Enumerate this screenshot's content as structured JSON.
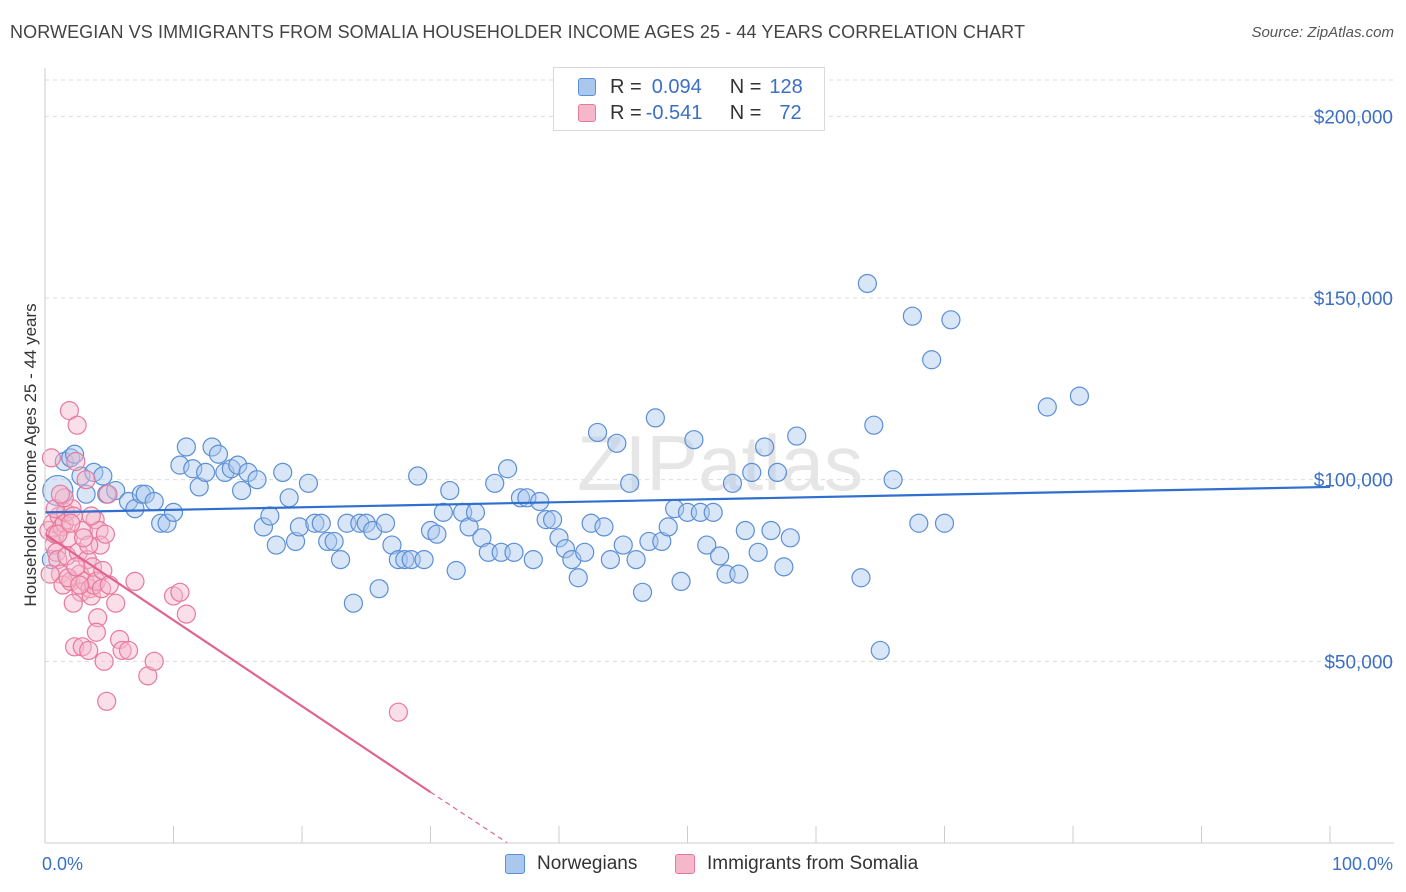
{
  "title": "NORWEGIAN VS IMMIGRANTS FROM SOMALIA HOUSEHOLDER INCOME AGES 25 - 44 YEARS CORRELATION CHART",
  "source": "Source: ZipAtlas.com",
  "watermark": "ZIPatlas",
  "colors": {
    "blue_fill": "#aac7ee",
    "blue_stroke": "#5b8fd6",
    "blue_line": "#2f6fce",
    "pink_fill": "#f5b8cb",
    "pink_stroke": "#e8799c",
    "pink_line": "#e0648f",
    "axis_text": "#3b6fc4",
    "grid": "#dcdcdc"
  },
  "legend": {
    "rows": [
      {
        "r_label": "R =",
        "r_value": "0.094",
        "n_label": "N =",
        "n_value": "128"
      },
      {
        "r_label": "R =",
        "r_value": "-0.541",
        "n_label": "N =",
        "n_value": "72"
      }
    ]
  },
  "bottom_legend": {
    "series1": "Norwegians",
    "series2": "Immigrants from Somalia"
  },
  "chart_data": {
    "type": "scatter",
    "title": "NORWEGIAN VS IMMIGRANTS FROM SOMALIA HOUSEHOLDER INCOME AGES 25 - 44 YEARS CORRELATION CHART",
    "xlabel": "",
    "ylabel": "Householder Income Ages 25 - 44 years",
    "xlim": [
      0,
      100
    ],
    "ylim": [
      0,
      210000
    ],
    "x_tick_labels": [
      "0.0%",
      "100.0%"
    ],
    "y_ticks": [
      50000,
      100000,
      150000,
      200000
    ],
    "y_tick_labels": [
      "$50,000",
      "$100,000",
      "$150,000",
      "$200,000"
    ],
    "grid": true,
    "legend_position": "top-center",
    "series": [
      {
        "name": "Norwegians",
        "color": "#5b8fd6",
        "trend": {
          "x": [
            0,
            100
          ],
          "y": [
            91000,
            98000
          ]
        },
        "points": [
          [
            1.0,
            97000
          ],
          [
            1.5,
            105000
          ],
          [
            2.0,
            106000
          ],
          [
            2.3,
            107000
          ],
          [
            2.8,
            101000
          ],
          [
            3.2,
            96000
          ],
          [
            3.8,
            102000
          ],
          [
            4.5,
            101000
          ],
          [
            4.8,
            96000
          ],
          [
            5.5,
            97000
          ],
          [
            6.5,
            94000
          ],
          [
            7.0,
            92000
          ],
          [
            7.5,
            96000
          ],
          [
            7.8,
            96000
          ],
          [
            8.5,
            94000
          ],
          [
            9.0,
            88000
          ],
          [
            9.5,
            88000
          ],
          [
            10.0,
            91000
          ],
          [
            10.5,
            104000
          ],
          [
            11.0,
            109000
          ],
          [
            11.5,
            103000
          ],
          [
            12.0,
            98000
          ],
          [
            12.5,
            102000
          ],
          [
            13.0,
            109000
          ],
          [
            13.5,
            107000
          ],
          [
            14.0,
            102000
          ],
          [
            14.5,
            103000
          ],
          [
            15.0,
            104000
          ],
          [
            15.3,
            97000
          ],
          [
            15.8,
            102000
          ],
          [
            16.5,
            100000
          ],
          [
            17.0,
            87000
          ],
          [
            17.5,
            90000
          ],
          [
            18.0,
            82000
          ],
          [
            18.5,
            102000
          ],
          [
            19.0,
            95000
          ],
          [
            19.5,
            83000
          ],
          [
            19.8,
            87000
          ],
          [
            20.5,
            99000
          ],
          [
            21.0,
            88000
          ],
          [
            21.5,
            88000
          ],
          [
            22.0,
            83000
          ],
          [
            22.5,
            83000
          ],
          [
            23.0,
            78000
          ],
          [
            23.5,
            88000
          ],
          [
            24.0,
            66000
          ],
          [
            24.5,
            88000
          ],
          [
            25.0,
            88000
          ],
          [
            25.5,
            86000
          ],
          [
            26.0,
            70000
          ],
          [
            26.5,
            88000
          ],
          [
            27.0,
            82000
          ],
          [
            27.5,
            78000
          ],
          [
            28.0,
            78000
          ],
          [
            28.5,
            78000
          ],
          [
            29.0,
            101000
          ],
          [
            29.5,
            78000
          ],
          [
            30.0,
            86000
          ],
          [
            30.5,
            85000
          ],
          [
            31.0,
            91000
          ],
          [
            31.5,
            97000
          ],
          [
            32.0,
            75000
          ],
          [
            32.5,
            91000
          ],
          [
            33.0,
            87000
          ],
          [
            33.5,
            91000
          ],
          [
            34.0,
            84000
          ],
          [
            34.5,
            80000
          ],
          [
            35.0,
            99000
          ],
          [
            35.5,
            80000
          ],
          [
            36.0,
            103000
          ],
          [
            36.5,
            80000
          ],
          [
            37.0,
            95000
          ],
          [
            37.5,
            95000
          ],
          [
            38.0,
            78000
          ],
          [
            38.5,
            94000
          ],
          [
            39.0,
            89000
          ],
          [
            39.5,
            89000
          ],
          [
            40.0,
            84000
          ],
          [
            40.5,
            81000
          ],
          [
            41.0,
            78000
          ],
          [
            41.5,
            73000
          ],
          [
            42.0,
            80000
          ],
          [
            42.5,
            88000
          ],
          [
            43.0,
            113000
          ],
          [
            43.5,
            87000
          ],
          [
            44.0,
            78000
          ],
          [
            44.5,
            110000
          ],
          [
            45.0,
            82000
          ],
          [
            45.5,
            99000
          ],
          [
            46.0,
            78000
          ],
          [
            46.5,
            69000
          ],
          [
            47.0,
            83000
          ],
          [
            47.5,
            117000
          ],
          [
            48.0,
            83000
          ],
          [
            48.5,
            87000
          ],
          [
            49.0,
            92000
          ],
          [
            49.5,
            72000
          ],
          [
            50.0,
            91000
          ],
          [
            50.5,
            111000
          ],
          [
            51.0,
            91000
          ],
          [
            51.5,
            82000
          ],
          [
            52.0,
            91000
          ],
          [
            52.5,
            79000
          ],
          [
            53.0,
            74000
          ],
          [
            53.5,
            99000
          ],
          [
            54.0,
            74000
          ],
          [
            54.5,
            86000
          ],
          [
            55.0,
            102000
          ],
          [
            55.5,
            80000
          ],
          [
            56.0,
            109000
          ],
          [
            56.5,
            86000
          ],
          [
            57.0,
            102000
          ],
          [
            57.5,
            76000
          ],
          [
            58.0,
            84000
          ],
          [
            58.5,
            112000
          ],
          [
            63.5,
            73000
          ],
          [
            64.0,
            154000
          ],
          [
            64.5,
            115000
          ],
          [
            65.0,
            53000
          ],
          [
            66.0,
            100000
          ],
          [
            67.5,
            145000
          ],
          [
            68.0,
            88000
          ],
          [
            69.0,
            133000
          ],
          [
            70.0,
            88000
          ],
          [
            70.5,
            144000
          ],
          [
            78.0,
            120000
          ],
          [
            80.5,
            123000
          ],
          [
            0.5,
            78000
          ]
        ]
      },
      {
        "name": "Immigrants from Somalia",
        "color": "#e8799c",
        "trend": {
          "x": [
            0,
            30
          ],
          "y": [
            85000,
            14000
          ]
        },
        "trend_dashed": {
          "x": [
            30,
            36
          ],
          "y": [
            14000,
            0
          ]
        },
        "points": [
          [
            0.3,
            86000
          ],
          [
            0.5,
            106000
          ],
          [
            0.6,
            88000
          ],
          [
            0.7,
            82000
          ],
          [
            0.8,
            85000
          ],
          [
            0.9,
            80000
          ],
          [
            1.0,
            78000
          ],
          [
            1.1,
            90000
          ],
          [
            1.2,
            74000
          ],
          [
            1.3,
            87000
          ],
          [
            1.4,
            71000
          ],
          [
            1.5,
            88000
          ],
          [
            1.6,
            91000
          ],
          [
            1.7,
            79000
          ],
          [
            1.8,
            84000
          ],
          [
            1.9,
            119000
          ],
          [
            2.0,
            72000
          ],
          [
            2.1,
            92000
          ],
          [
            2.2,
            90000
          ],
          [
            2.3,
            54000
          ],
          [
            2.4,
            105000
          ],
          [
            2.5,
            115000
          ],
          [
            2.6,
            80000
          ],
          [
            2.7,
            74000
          ],
          [
            2.8,
            69000
          ],
          [
            2.9,
            54000
          ],
          [
            3.0,
            86000
          ],
          [
            3.1,
            72000
          ],
          [
            3.2,
            100000
          ],
          [
            3.3,
            78000
          ],
          [
            3.4,
            53000
          ],
          [
            3.5,
            70000
          ],
          [
            3.6,
            68000
          ],
          [
            3.7,
            76000
          ],
          [
            3.8,
            71000
          ],
          [
            3.9,
            89000
          ],
          [
            4.0,
            72000
          ],
          [
            4.1,
            62000
          ],
          [
            4.2,
            86000
          ],
          [
            4.3,
            82000
          ],
          [
            4.4,
            70000
          ],
          [
            4.5,
            75000
          ],
          [
            4.6,
            50000
          ],
          [
            4.7,
            85000
          ],
          [
            4.8,
            39000
          ],
          [
            4.9,
            96000
          ],
          [
            5.0,
            71000
          ],
          [
            5.5,
            66000
          ],
          [
            5.8,
            56000
          ],
          [
            6.0,
            53000
          ],
          [
            6.5,
            53000
          ],
          [
            7.0,
            72000
          ],
          [
            8.0,
            46000
          ],
          [
            8.5,
            50000
          ],
          [
            10.0,
            68000
          ],
          [
            10.5,
            69000
          ],
          [
            11.0,
            63000
          ],
          [
            1.0,
            85000
          ],
          [
            1.8,
            73000
          ],
          [
            2.2,
            66000
          ],
          [
            2.7,
            71000
          ],
          [
            3.4,
            82000
          ],
          [
            0.8,
            92000
          ],
          [
            1.5,
            95000
          ],
          [
            2.0,
            88000
          ],
          [
            3.0,
            84000
          ],
          [
            4.0,
            58000
          ],
          [
            0.4,
            74000
          ],
          [
            1.2,
            96000
          ],
          [
            2.4,
            76000
          ],
          [
            27.5,
            36000
          ],
          [
            3.6,
            90000
          ]
        ]
      }
    ]
  }
}
